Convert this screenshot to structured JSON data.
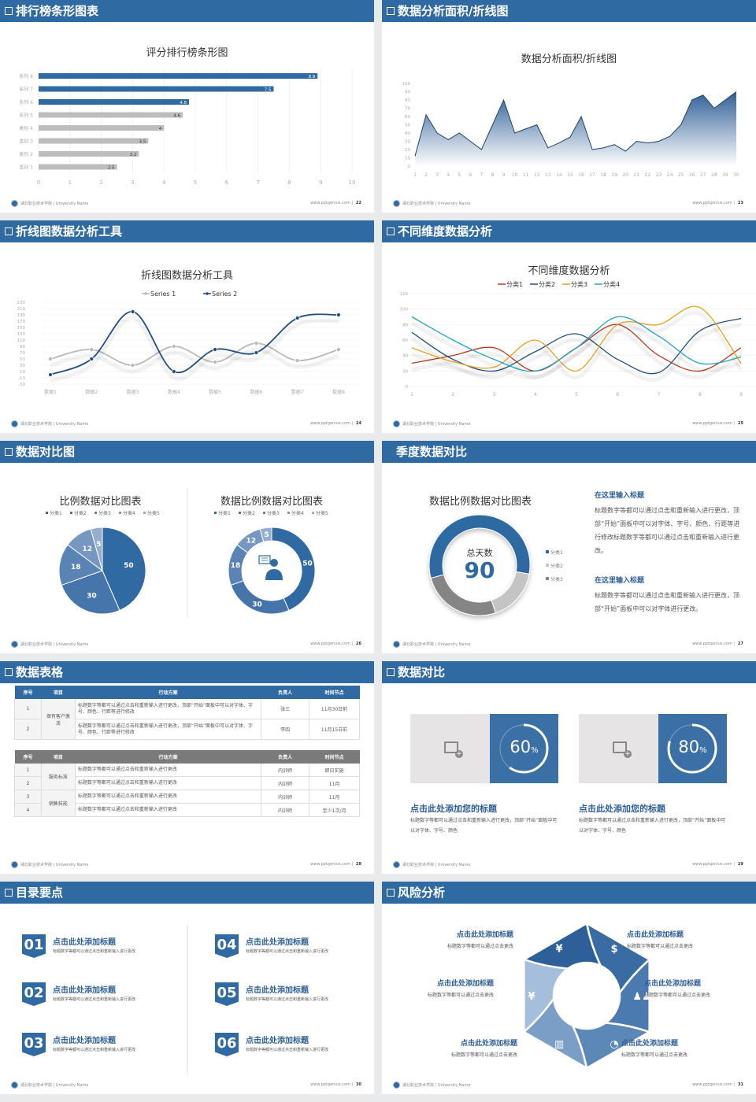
{
  "footer": {
    "school": "湖北职业技术学院 | University Name",
    "site": "www.pptgenius.com"
  },
  "colors": {
    "header": "#2f6aa2",
    "accent": "#2f6aa2",
    "gray": "#bdbdbd"
  },
  "slides": [
    {
      "title": "排行榜条形图表",
      "page": "22",
      "checkbox": true
    },
    {
      "title": "数据分析面积/折线图",
      "page": "23",
      "checkbox": true
    },
    {
      "title": "折线图数据分析工具",
      "page": "24",
      "checkbox": true
    },
    {
      "title": "不同维度数据分析",
      "page": "25",
      "checkbox": true
    },
    {
      "title": "数据对比图",
      "page": "26",
      "checkbox": true
    },
    {
      "title": "季度数据对比",
      "page": "27",
      "checkbox": false
    },
    {
      "title": "数据表格",
      "page": "28",
      "checkbox": true
    },
    {
      "title": "数据对比",
      "page": "29",
      "checkbox": true
    },
    {
      "title": "目录要点",
      "page": "30",
      "checkbox": true
    },
    {
      "title": "风险分析",
      "page": "31",
      "checkbox": true
    }
  ],
  "chart_data": [
    {
      "type": "bar",
      "orientation": "horizontal",
      "title": "评分排行榜条形图",
      "categories": [
        "系列 8",
        "系列 7",
        "系列 6",
        "系列 5",
        "类别 4",
        "类别 3",
        "类别 2",
        "类别 1"
      ],
      "values": [
        8.9,
        7.5,
        4.8,
        4.6,
        4,
        3.5,
        3.2,
        2.5
      ],
      "highlight_colors": [
        "#2f6aa2",
        "#2f6aa2",
        "#2f6aa2",
        "#bdbdbd",
        "#bdbdbd",
        "#bdbdbd",
        "#bdbdbd",
        "#bdbdbd"
      ],
      "xlim": [
        0,
        10
      ],
      "xticks": [
        0,
        1,
        2,
        3,
        4,
        5,
        6,
        7,
        8,
        9,
        10
      ],
      "grid": true
    },
    {
      "type": "area",
      "title": "数据分析面积/折线图",
      "x": [
        1,
        2,
        3,
        4,
        5,
        6,
        7,
        8,
        9,
        10,
        11,
        12,
        13,
        14,
        15,
        16,
        17,
        18,
        19,
        20,
        21,
        22,
        23,
        24,
        25,
        26,
        27,
        28,
        29,
        30
      ],
      "values": [
        12,
        62,
        40,
        32,
        40,
        30,
        20,
        50,
        80,
        40,
        45,
        50,
        22,
        28,
        35,
        60,
        20,
        22,
        26,
        18,
        30,
        28,
        30,
        36,
        50,
        80,
        86,
        70,
        80,
        90
      ],
      "ylim": [
        0,
        100
      ],
      "yticks": [
        0,
        10,
        20,
        30,
        40,
        50,
        60,
        70,
        80,
        90,
        100
      ],
      "color": "#2f6aa2"
    },
    {
      "type": "line",
      "title": "折线图数据分析工具",
      "smooth": true,
      "categories": [
        "数据1",
        "数据2",
        "数据3",
        "数据4",
        "数据5",
        "数据6",
        "数据7",
        "数据8"
      ],
      "series": [
        {
          "name": "Series 1",
          "values": [
            50,
            80,
            30,
            90,
            40,
            100,
            45,
            80
          ],
          "color": "#b8b8b8"
        },
        {
          "name": "Series 2",
          "values": [
            0,
            50,
            200,
            10,
            80,
            70,
            180,
            190
          ],
          "color": "#1f4e85"
        }
      ],
      "ylim": [
        -30,
        230
      ],
      "yticks": [
        -30,
        -10,
        10,
        30,
        50,
        70,
        90,
        110,
        130,
        150,
        170,
        190,
        210,
        230
      ],
      "legend": "top"
    },
    {
      "type": "line",
      "title": "不同维度数据分析",
      "smooth": true,
      "categories": [
        "1",
        "2",
        "3",
        "4",
        "5",
        "6",
        "7",
        "8",
        "9"
      ],
      "series": [
        {
          "name": "分类1",
          "values": [
            30,
            40,
            50,
            20,
            50,
            80,
            40,
            20,
            50
          ],
          "color": "#b83a1b"
        },
        {
          "name": "分类2",
          "values": [
            70,
            35,
            20,
            45,
            68,
            35,
            18,
            72,
            88
          ],
          "color": "#1f4e85"
        },
        {
          "name": "分类3",
          "values": [
            50,
            32,
            25,
            60,
            20,
            80,
            80,
            102,
            30
          ],
          "color": "#e6a01c"
        },
        {
          "name": "分类4",
          "values": [
            90,
            60,
            35,
            20,
            50,
            90,
            65,
            30,
            38
          ],
          "color": "#1fa3c0"
        }
      ],
      "ylim": [
        0,
        120
      ],
      "yticks": [
        0,
        20,
        40,
        60,
        80,
        100,
        120
      ],
      "legend": "top"
    },
    {
      "type": "pie",
      "title": "比例数据对比图表",
      "categories": [
        "分类1",
        "分类2",
        "分类3",
        "分类4",
        "分类5"
      ],
      "values": [
        50,
        30,
        18,
        12,
        5
      ],
      "colors": [
        "#2f6aa2",
        "#4575ab",
        "#5a84b5",
        "#7597c0",
        "#95aece"
      ],
      "legend": "top"
    },
    {
      "type": "pie",
      "variant": "donut",
      "title": "数据比例数据对比图表",
      "categories": [
        "分类1",
        "分类2",
        "分类3",
        "分类4",
        "分类5"
      ],
      "values": [
        50,
        30,
        18,
        12,
        5
      ],
      "colors": [
        "#2f6aa2",
        "#4575ab",
        "#5a84b5",
        "#7597c0",
        "#95aece"
      ],
      "legend": "top",
      "center_icon": "customer-service-icon"
    },
    {
      "type": "pie",
      "variant": "donut",
      "title": "数据比例数据对比图表",
      "categories": [
        "分类1",
        "分类2",
        "分类3"
      ],
      "values": [
        57,
        17,
        26
      ],
      "colors": [
        "#2f6aa2",
        "#c4c4c4",
        "#858585"
      ],
      "legend": "right",
      "center_label": "总天数",
      "center_value": "90"
    }
  ],
  "quarter": {
    "blocks": [
      {
        "title": "在这里输入标题",
        "text": "标题数字等都可以通过点击和重新输入进行更改，顶部“开始”面板中可以对字体、字号、颜色、行距等进行修改标题数字等都可以通过点击和重新输入进行更改。"
      },
      {
        "title": "在这里输入标题",
        "text": "标题数字等都可以通过点击和重新输入进行更改，顶部“开始”面板中可以对字体进行更改。"
      }
    ]
  },
  "tables": {
    "headers": [
      "序号",
      "项目",
      "行动方案",
      "负责人",
      "时间节点"
    ],
    "t1": [
      {
        "idx": "1",
        "item": "保有客户激活",
        "span": 2,
        "act": "标题数字等都可以通过点击和重新输入进行更改，顶部“开始”面板中可以对字体、字号、颜色、行距等进行修改",
        "owner": "张三",
        "time": "11月30日前"
      },
      {
        "idx": "2",
        "act": "标题数字等都可以通过点击和重新输入进行更改，顶部“开始”面板中可以对字体、字号、颜色、行距等进行修改",
        "owner": "李四",
        "time": "11月15日前"
      }
    ],
    "t2": [
      {
        "idx": "1",
        "item": "服务标准",
        "span": 2,
        "act": "标题数字等都可以通过点击和重新输入进行更改",
        "owner": "内训师",
        "time": "即日实施"
      },
      {
        "idx": "2",
        "act": "标题数字等都可以通过点击和重新输入进行更改",
        "owner": "内训师",
        "time": "11月"
      },
      {
        "idx": "3",
        "item": "销售技能",
        "span": 2,
        "act": "标题数字等都可以通过点击和重新输入进行更改",
        "owner": "内训师",
        "time": "11月"
      },
      {
        "idx": "4",
        "act": "标题数字等都可以通过点击和重新输入进行更改",
        "owner": "内训师",
        "time": "至少1次/月"
      }
    ]
  },
  "compare": {
    "items": [
      {
        "percent": 60,
        "value": "60",
        "unit": "%",
        "title": "点击此处添加您的标题",
        "text": "标题数字等都可以通过点击和重新输入进行更改，顶部“开始”面板中可以对字体、字号、颜色",
        "icon": "image-add-icon"
      },
      {
        "percent": 80,
        "value": "80",
        "unit": "%",
        "title": "点击此处添加您的标题",
        "text": "标题数字等都可以通过点击和重新输入进行更改，顶部“开始”面板中可以对字体、字号、颜色",
        "icon": "image-add-icon"
      }
    ]
  },
  "toc": {
    "items": [
      {
        "num": "01",
        "title": "点击此处添加标题",
        "text": "标题数字等都可以通过点击和重新输入进行更改"
      },
      {
        "num": "02",
        "title": "点击此处添加标题",
        "text": "标题数字等都可以通过点击和重新输入进行更改"
      },
      {
        "num": "03",
        "title": "点击此处添加标题",
        "text": "标题数字等都可以通过点击和重新输入进行更改"
      },
      {
        "num": "04",
        "title": "点击此处添加标题",
        "text": "标题数字等都可以通过点击和重新输入进行更改"
      },
      {
        "num": "05",
        "title": "点击此处添加标题",
        "text": "标题数字等都可以通过点击和重新输入进行更改"
      },
      {
        "num": "06",
        "title": "点击此处添加标题",
        "text": "标题数字等都可以通过点击和重新输入进行更改"
      }
    ]
  },
  "risk": {
    "items": [
      {
        "title": "点击此处添加标题",
        "text": "标题数字等都可以通过点击更改",
        "icon": "money-bag-icon",
        "glyph": "¥",
        "color": "#2d5f98"
      },
      {
        "title": "点击此处添加标题",
        "text": "标题数字等都可以通过点击更改",
        "icon": "coins-icon",
        "glyph": "$",
        "color": "#3a6ca4"
      },
      {
        "title": "点击此处添加标题",
        "text": "标题数字等都可以通过点击更改",
        "icon": "users-icon",
        "glyph": "♟♟",
        "color": "#4a7aaf"
      },
      {
        "title": "点击此处添加标题",
        "text": "标题数字等都可以通过点击更改",
        "icon": "pie-chart-icon",
        "glyph": "◔",
        "color": "#5c88b8"
      },
      {
        "title": "点击此处添加标题",
        "text": "标题数字等都可以通过点击更改",
        "icon": "building-icon",
        "glyph": "▥",
        "color": "#7a9ec6"
      },
      {
        "title": "点击此处添加标题",
        "text": "标题数字等都可以通过点击更改",
        "icon": "hand-money-icon",
        "glyph": "¥",
        "color": "#a4bedb"
      }
    ]
  }
}
